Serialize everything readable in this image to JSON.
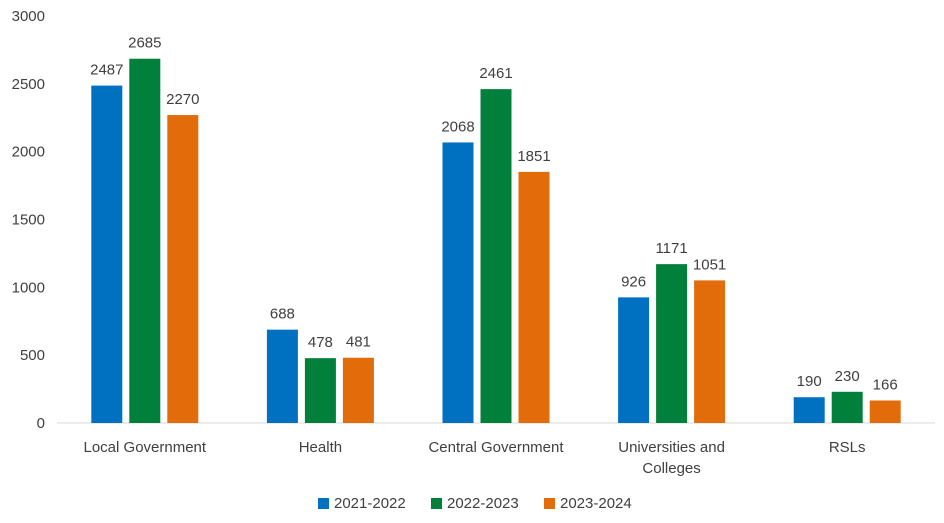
{
  "chart_data": {
    "type": "bar",
    "categories": [
      "Local Government",
      "Health",
      "Central Government",
      "Universities and Colleges",
      "RSLs"
    ],
    "category_lines": [
      [
        "Local Government"
      ],
      [
        "Health"
      ],
      [
        "Central Government"
      ],
      [
        "Universities and",
        "Colleges"
      ],
      [
        "RSLs"
      ]
    ],
    "series": [
      {
        "name": "2021-2022",
        "color": "#0070C0",
        "values": [
          2487,
          688,
          2068,
          926,
          190
        ]
      },
      {
        "name": "2022-2023",
        "color": "#00803A",
        "values": [
          2685,
          478,
          2461,
          1171,
          230
        ]
      },
      {
        "name": "2023-2024",
        "color": "#E36C0A",
        "values": [
          2270,
          481,
          1851,
          1051,
          166
        ]
      }
    ],
    "ylim": [
      0,
      3000
    ],
    "yticks": [
      0,
      500,
      1000,
      1500,
      2000,
      2500,
      3000
    ],
    "grid": false,
    "legend_position": "bottom",
    "axis_color": "#D9D9D9"
  }
}
